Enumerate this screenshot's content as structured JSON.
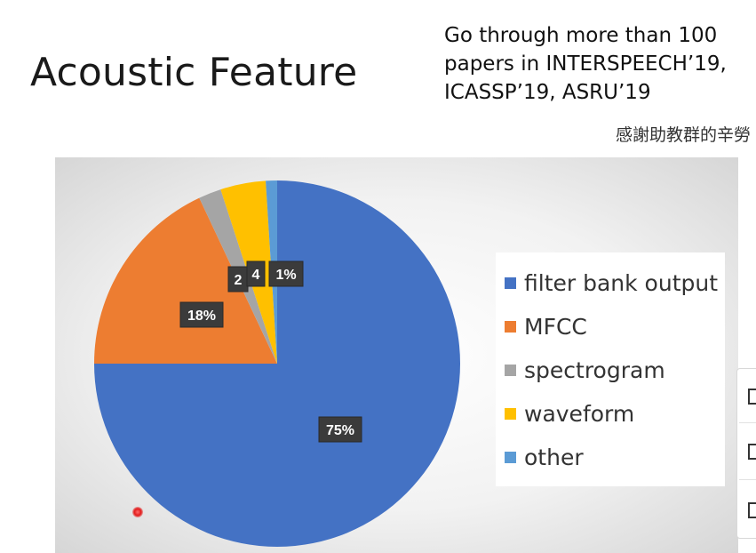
{
  "slide": {
    "title": "Acoustic Feature",
    "note_lines": [
      "Go through more than 100",
      "papers in INTERSPEECH’19,",
      "ICASSP’19, ASRU’19"
    ],
    "thanks": "感謝助教群的辛勞"
  },
  "chart_data": {
    "type": "pie",
    "title": "",
    "slices": [
      {
        "name": "filter bank output",
        "value": 75,
        "label": "75%",
        "color": "#4472C4"
      },
      {
        "name": "MFCC",
        "value": 18,
        "label": "18%",
        "color": "#ED7D31"
      },
      {
        "name": "spectrogram",
        "value": 2,
        "label": "2",
        "color": "#A5A5A5"
      },
      {
        "name": "waveform",
        "value": 4,
        "label": "4",
        "color": "#FFC000"
      },
      {
        "name": "other",
        "value": 1,
        "label": "1%",
        "color": "#5B9BD5"
      }
    ],
    "legend_position": "right"
  },
  "toolbar": {
    "icons": [
      "slide-panel-icon",
      "notes-icon",
      "comment-icon"
    ]
  }
}
